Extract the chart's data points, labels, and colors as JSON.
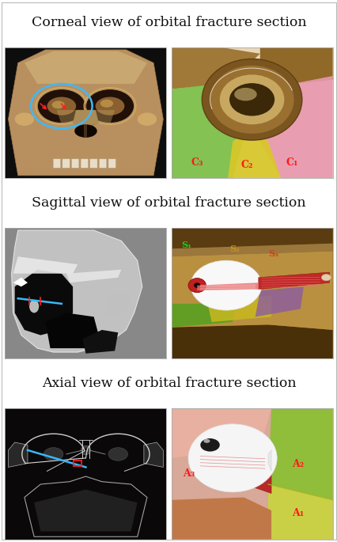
{
  "title_row1": "Corneal view of orbital fracture section",
  "title_row2": "Sagittal view of orbital fracture section",
  "title_row3": "Axial view of orbital fracture section",
  "background_color": "#ffffff",
  "title_fontsize": 12.5,
  "figure_width": 4.27,
  "figure_height": 6.85,
  "dpi": 100,
  "outer_border": "#bbbbbb",
  "panel_border": "#aaaaaa",
  "title_sep_color": "#bbbbbb",
  "c1r_bg": "#f2ead8",
  "c1r_green": "#7dc050",
  "c1r_yellow": "#d4c040",
  "c1r_pink": "#f0a0b8",
  "c1r_bone_outer": "#7a5520",
  "c1r_bone_inner": "#c8a870",
  "c1r_orbital_dark": "#4a3010",
  "c1r_label_color": "#ff2020",
  "s2r_bg": "#9a7840",
  "s2r_top_bone": "#6a4a10",
  "s2r_bot_bone": "#5a3c10",
  "s2r_green": "#50a020",
  "s2r_yellow": "#c8b828",
  "s2r_purple": "#8060a8",
  "s2r_eye_white": "#f0f0f0",
  "s2r_iris_red": "#c82020",
  "s2r_muscle_red": "#c02828",
  "s2r_muscle_pink": "#e86060",
  "a3r_bg": "#e0b0a8",
  "a3r_green": "#88c030",
  "a3r_yellow_green": "#c8d838",
  "a3r_eye_white": "#f0f0f0",
  "a3r_muscle_red": "#b82020",
  "a3r_lower_orange": "#d07848"
}
